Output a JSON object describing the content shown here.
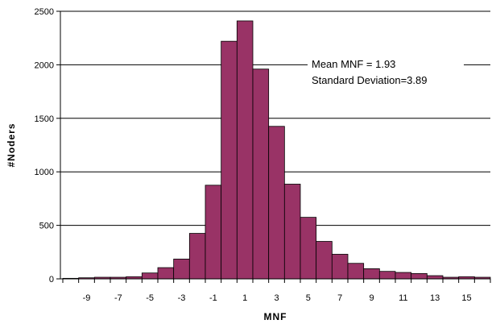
{
  "chart_data": {
    "type": "bar",
    "title": "",
    "xlabel": "MNF",
    "ylabel": "#Noders",
    "ylim": [
      0,
      2500
    ],
    "yticks": [
      "0",
      "500",
      "1000",
      "1500",
      "2000",
      "2500"
    ],
    "xtick_labels": [
      "-9",
      "-7",
      "-5",
      "-3",
      "-1",
      "1",
      "3",
      "5",
      "7",
      "9",
      "11",
      "13",
      "15"
    ],
    "categories": [
      "-10",
      "-9",
      "-8",
      "-7",
      "-6",
      "-5",
      "-4",
      "-3",
      "-2",
      "-1",
      "0",
      "1",
      "2",
      "3",
      "4",
      "5",
      "6",
      "7",
      "8",
      "9",
      "10",
      "11",
      "12",
      "13",
      "14",
      "15",
      "16"
    ],
    "values": [
      5,
      10,
      15,
      15,
      20,
      55,
      105,
      185,
      425,
      875,
      2220,
      2410,
      1960,
      1425,
      885,
      575,
      350,
      230,
      145,
      95,
      70,
      60,
      50,
      30,
      15,
      20,
      15
    ],
    "grid": true,
    "legend": "none",
    "bar_color": "#993366",
    "annotation": [
      "Mean  MNF = 1.93",
      "Standard Deviation=3.89"
    ]
  }
}
